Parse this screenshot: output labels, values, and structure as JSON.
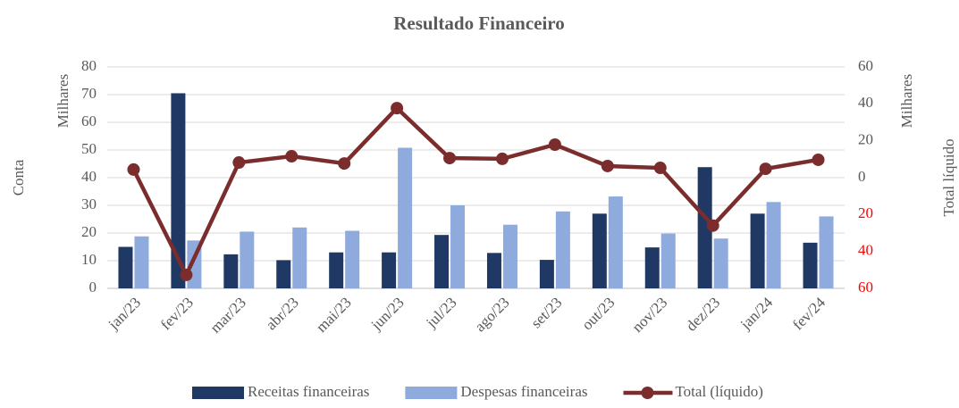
{
  "chart_data": {
    "type": "bar",
    "title": "Resultado Financeiro",
    "y_label": "Conta",
    "y_unit": "Milhares",
    "y2_label": "Total líquido",
    "y2_unit": "Milhares",
    "categories": [
      "jan/23",
      "fev/23",
      "mar/23",
      "abr/23",
      "mai/23",
      "jun/23",
      "jul/23",
      "ago/23",
      "set/23",
      "out/23",
      "nov/23",
      "dez/23",
      "jan/24",
      "fev/24"
    ],
    "series": [
      {
        "name": "Receitas financeiras",
        "type": "bar",
        "color": "#203864",
        "values": [
          15,
          70.5,
          12.3,
          10.2,
          13,
          13,
          19.3,
          12.8,
          10.3,
          27,
          14.8,
          43.8,
          27,
          16.5
        ]
      },
      {
        "name": "Despesas financeiras",
        "type": "bar",
        "color": "#8faadc",
        "values": [
          18.8,
          17.3,
          20.5,
          22,
          20.8,
          50.8,
          30,
          23,
          27.8,
          33.2,
          19.8,
          18,
          31.2,
          26
        ]
      },
      {
        "name": "Total (líquido)",
        "type": "line",
        "axis": "y2",
        "color": "#7b2c2c",
        "values": [
          4.4,
          -52.7,
          8.2,
          11.6,
          7.7,
          37.7,
          10.6,
          10.2,
          17.9,
          6.3,
          5.3,
          -26,
          4.8,
          9.7
        ]
      }
    ],
    "ylim": [
      0,
      80
    ],
    "yticks": [
      0,
      10,
      20,
      30,
      40,
      50,
      60,
      70,
      80
    ],
    "y2lim": [
      -60,
      60
    ],
    "y2ticks": [
      {
        "value": -60,
        "label": "60"
      },
      {
        "value": -40,
        "label": "40"
      },
      {
        "value": -20,
        "label": "20"
      },
      0,
      20,
      40,
      60
    ],
    "negative_tick_color": "#ff0000",
    "grid": true,
    "legend": "bottom"
  }
}
